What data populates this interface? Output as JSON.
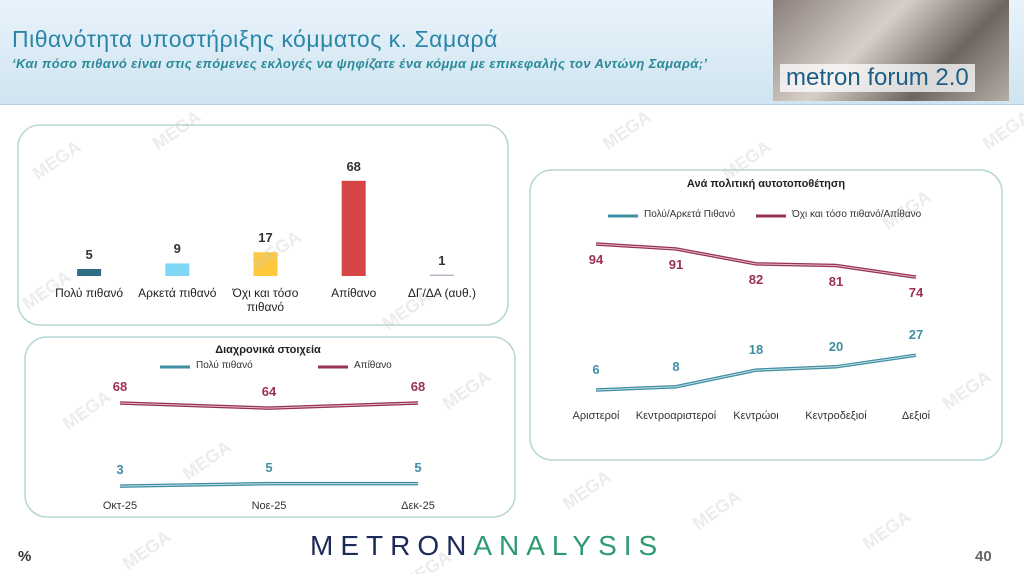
{
  "header": {
    "title": "Πιθανότητα υποστήριξης κόμματος κ. Σαμαρά",
    "subtitle": "‘Και πόσο πιθανό είναι στις επόμενες εκλογές να ψηφίζατε ένα κόμμα με επικεφαλής τον Αντώνη Σαμαρά;’",
    "logo": "metron forum 2.0"
  },
  "watermark": "MEGA",
  "chart_data": [
    {
      "type": "bar",
      "categories": [
        "Πολύ πιθανό",
        "Αρκετά πιθανό",
        "Όχι και τόσο πιθανό",
        "Απίθανο",
        "ΔΓ/ΔΑ (αυθ.)"
      ],
      "values": [
        5,
        9,
        17,
        68,
        1
      ],
      "colors": [
        "#2f6f86",
        "#7fd6f5",
        "#ffc83d",
        "#d64545",
        "#b0b8c4"
      ]
    },
    {
      "type": "line",
      "title": "Διαχρονικά στοιχεία",
      "categories": [
        "Οκτ-25",
        "Νοε-25",
        "Δεκ-25"
      ],
      "series": [
        {
          "name": "Πολύ πιθανό",
          "color": "#3f8fa3",
          "values": [
            3,
            5,
            5
          ]
        },
        {
          "name": "Απίθανο",
          "color": "#9a2f58",
          "values": [
            68,
            64,
            68
          ]
        }
      ]
    },
    {
      "type": "line",
      "title": "Ανά πολιτική αυτοτοποθέτηση",
      "categories": [
        "Αριστεροί",
        "Κεντροαριστεροί",
        "Κεντρώοι",
        "Κεντροδεξιοί",
        "Δεξιοί"
      ],
      "series": [
        {
          "name": "Πολύ/Αρκετά Πιθανό",
          "color": "#3f8fa3",
          "values": [
            6,
            8,
            18,
            20,
            27
          ]
        },
        {
          "name": "Όχι και τόσο πιθανό/Απίθανο",
          "color": "#9a2f58",
          "values": [
            94,
            91,
            82,
            81,
            74
          ]
        }
      ]
    }
  ],
  "footer": {
    "brand_left": "METRON",
    "brand_right": "ANALYSIS",
    "unit": "%",
    "page": "40"
  }
}
